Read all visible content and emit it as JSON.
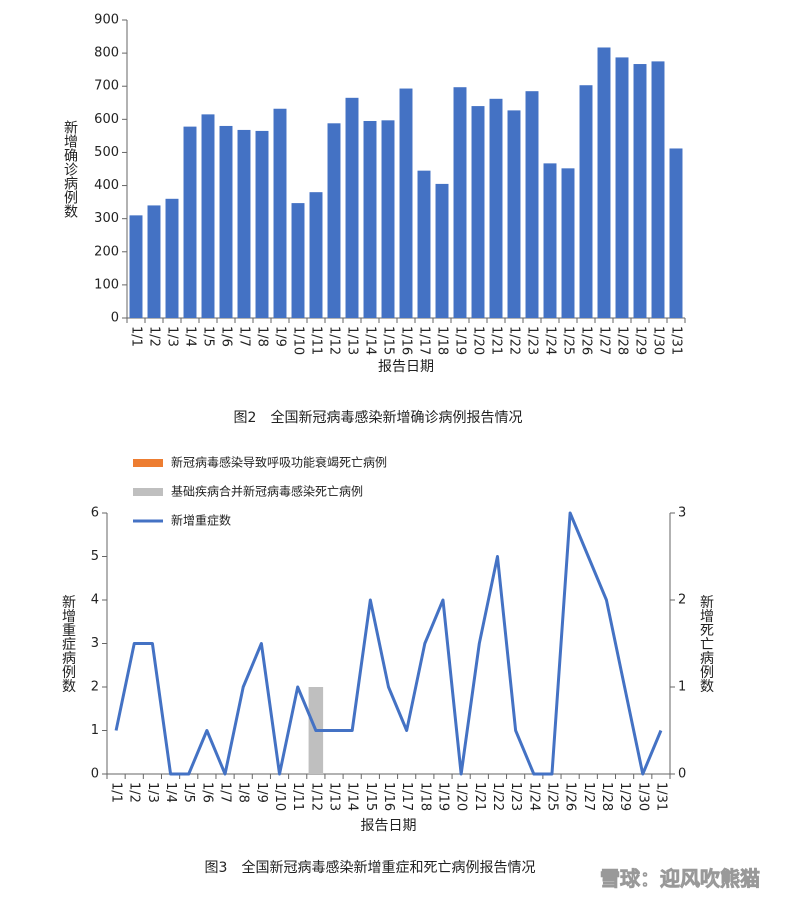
{
  "chart_data": [
    {
      "type": "bar",
      "caption": "图2　全国新冠病毒感染新增确诊病例报告情况",
      "xlabel": "报告日期",
      "ylabel": "新增确诊病例数",
      "categories": [
        "1/1",
        "1/2",
        "1/3",
        "1/4",
        "1/5",
        "1/6",
        "1/7",
        "1/8",
        "1/9",
        "1/10",
        "1/11",
        "1/12",
        "1/13",
        "1/14",
        "1/15",
        "1/16",
        "1/17",
        "1/18",
        "1/19",
        "1/20",
        "1/21",
        "1/22",
        "1/23",
        "1/24",
        "1/25",
        "1/26",
        "1/27",
        "1/28",
        "1/29",
        "1/30",
        "1/31"
      ],
      "values": [
        310,
        340,
        360,
        578,
        615,
        580,
        568,
        565,
        632,
        347,
        380,
        588,
        665,
        595,
        597,
        693,
        445,
        405,
        697,
        640,
        662,
        627,
        685,
        467,
        452,
        703,
        817,
        787,
        767,
        775,
        512
      ],
      "color": "#4472c4",
      "ylim": [
        0,
        900
      ],
      "yticks": [
        0,
        100,
        200,
        300,
        400,
        500,
        600,
        700,
        800,
        900
      ]
    },
    {
      "type": "combo",
      "caption": "图3　全国新冠病毒感染新增重症和死亡病例报告情况",
      "xlabel": "报告日期",
      "ylabel": "新增重症病例数",
      "y2label": "新增死亡病例数",
      "categories": [
        "1/1",
        "1/2",
        "1/3",
        "1/4",
        "1/5",
        "1/6",
        "1/7",
        "1/8",
        "1/9",
        "1/10",
        "1/11",
        "1/12",
        "1/13",
        "1/14",
        "1/15",
        "1/16",
        "1/17",
        "1/18",
        "1/19",
        "1/20",
        "1/21",
        "1/22",
        "1/23",
        "1/24",
        "1/25",
        "1/26",
        "1/27",
        "1/28",
        "1/29",
        "1/30",
        "1/31"
      ],
      "series": [
        {
          "name": "新冠病毒感染导致呼吸功能衰竭死亡病例",
          "type": "bar",
          "axis": "y2",
          "color": "#ed7d31",
          "values": [
            0,
            0,
            0,
            0,
            0,
            0,
            0,
            0,
            0,
            0,
            0,
            0,
            0,
            0,
            0,
            0,
            0,
            0,
            0,
            0,
            0,
            0,
            0,
            0,
            0,
            0,
            0,
            0,
            0,
            0,
            0
          ]
        },
        {
          "name": "基础疾病合并新冠病毒感染死亡病例",
          "type": "bar",
          "axis": "y2",
          "color": "#bfbfbf",
          "values": [
            0,
            0,
            0,
            0,
            0,
            0,
            0,
            0,
            0,
            0,
            0,
            1,
            0,
            0,
            0,
            0,
            0,
            0,
            0,
            0,
            0,
            0,
            0,
            0,
            0,
            0,
            0,
            0,
            0,
            0,
            0
          ]
        },
        {
          "name": "新增重症数",
          "type": "line",
          "color": "#4472c4",
          "values": [
            1,
            3,
            3,
            0,
            0,
            1,
            0,
            2,
            3,
            0,
            2,
            1,
            1,
            1,
            4,
            2,
            1,
            3,
            4,
            0,
            3,
            5,
            1,
            0,
            0,
            6,
            5,
            4,
            2,
            0,
            1
          ]
        }
      ],
      "ylim": [
        0,
        6
      ],
      "yticks": [
        0,
        1,
        2,
        3,
        4,
        5,
        6
      ],
      "y2lim": [
        0,
        3
      ],
      "y2ticks": [
        0,
        1,
        2,
        3
      ]
    }
  ],
  "watermark": "雪球：迎风吹熊猫"
}
